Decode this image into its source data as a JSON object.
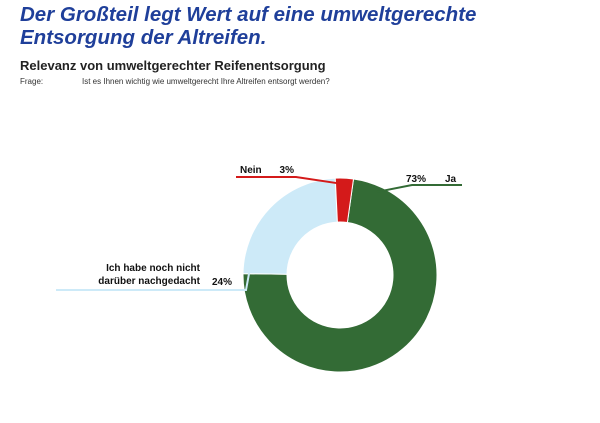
{
  "header": {
    "title_line1": "Der Großteil legt Wert auf eine umweltgerechte",
    "title_line2": "Entsorgung der Altreifen.",
    "subtitle": "Relevanz von umweltgerechter Reifenentsorgung",
    "question_label": "Frage:",
    "question_text": "Ist es Ihnen wichtig wie umweltgerecht Ihre Altreifen entsorgt werden?"
  },
  "chart_data": {
    "type": "pie",
    "donut": true,
    "title": "Relevanz von umweltgerechter Reifenentsorgung",
    "slices": [
      {
        "label": "Ja",
        "value": 73,
        "value_label": "73%",
        "color": "#336b35",
        "label_lines": [
          "Ja"
        ]
      },
      {
        "label": "Ich habe noch nicht darüber nachgedacht",
        "value": 24,
        "value_label": "24%",
        "color": "#cdeaf8",
        "label_lines": [
          "Ich habe noch nicht",
          "darüber nachgedacht"
        ]
      },
      {
        "label": "Nein",
        "value": 3,
        "value_label": "3%",
        "color": "#d41a1a",
        "label_lines": [
          "Nein"
        ]
      }
    ],
    "leader_colors": {
      "Ja": "#336b35",
      "Ich habe noch nicht darüber nachgedacht": "#cdeaf8",
      "Nein": "#d41a1a"
    }
  }
}
